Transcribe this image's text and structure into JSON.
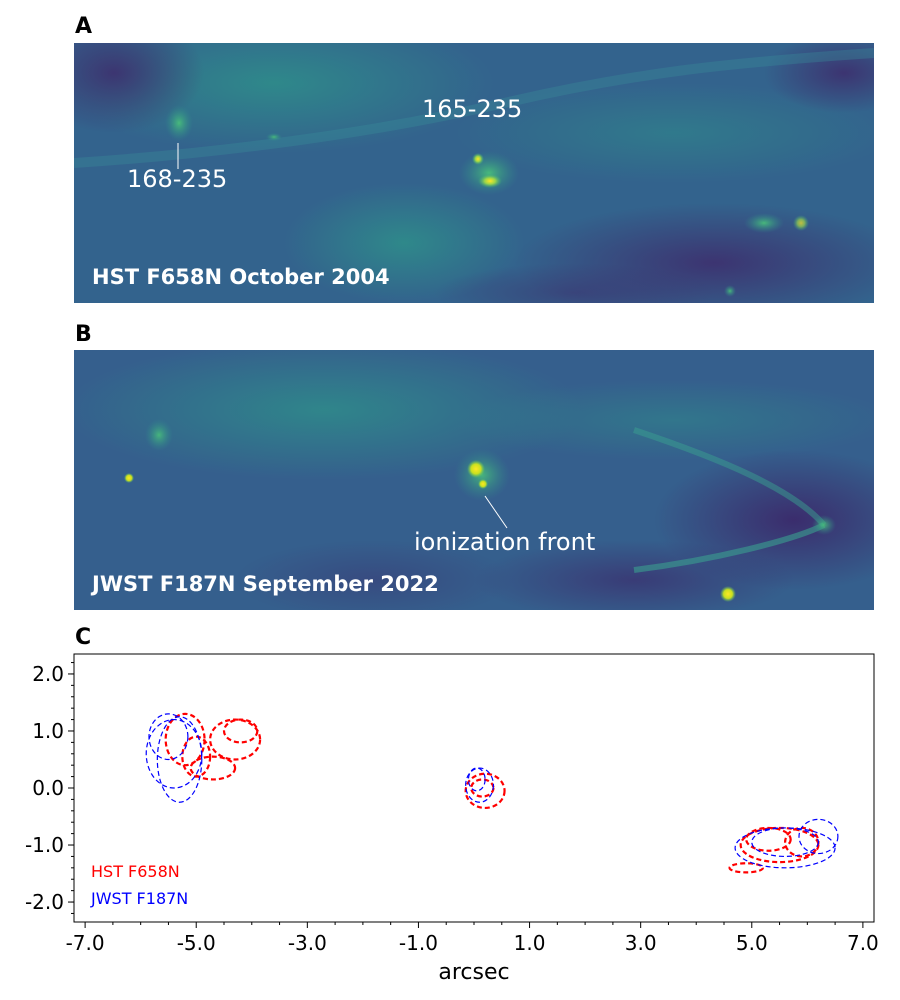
{
  "panels": {
    "a": {
      "letter": "A",
      "caption": "HST F658N October 2004",
      "labels": [
        "168-235",
        "165-235"
      ]
    },
    "b": {
      "letter": "B",
      "caption": "JWST F187N September 2022",
      "labels": [
        "ionization front"
      ]
    },
    "c": {
      "letter": "C"
    }
  },
  "colors": {
    "bg_dark": "#3b4f8c",
    "bg_teal": "#2c8c8a",
    "bright": "#fde725",
    "hst": "#ff0000",
    "jwst": "#0000ff"
  },
  "chart_data": {
    "type": "scatter",
    "xlabel": "arcsec",
    "ylabel": "",
    "xlim": [
      -7.2,
      7.2
    ],
    "ylim": [
      -2.35,
      2.35
    ],
    "xticks": [
      "-7.0",
      "-5.0",
      "-3.0",
      "-1.0",
      "1.0",
      "3.0",
      "5.0",
      "7.0"
    ],
    "xtick_values": [
      -7,
      -5,
      -3,
      -1,
      1,
      3,
      5,
      7
    ],
    "yticks": [
      "2.0",
      "1.0",
      "0.0",
      "-1.0",
      "-2.0"
    ],
    "ytick_values": [
      2,
      1,
      0,
      -1,
      -2
    ],
    "legend": [
      "HST F658N",
      "JWST F187N"
    ],
    "legend_placement": "bottom-left",
    "series": [
      {
        "name": "HST F658N",
        "contours": [
          {
            "cx": -5.2,
            "cy": 0.85,
            "rx": 0.35,
            "ry": 0.45
          },
          {
            "cx": -5.0,
            "cy": 0.55,
            "rx": 0.25,
            "ry": 0.35
          },
          {
            "cx": -4.3,
            "cy": 0.85,
            "rx": 0.45,
            "ry": 0.35
          },
          {
            "cx": -4.2,
            "cy": 1.0,
            "rx": 0.3,
            "ry": 0.2
          },
          {
            "cx": -4.7,
            "cy": 0.35,
            "rx": 0.4,
            "ry": 0.2
          },
          {
            "cx": 0.2,
            "cy": -0.05,
            "rx": 0.35,
            "ry": 0.3
          },
          {
            "cx": 0.15,
            "cy": 0.0,
            "rx": 0.2,
            "ry": 0.15
          },
          {
            "cx": 5.3,
            "cy": -0.9,
            "rx": 0.4,
            "ry": 0.2
          },
          {
            "cx": 5.9,
            "cy": -0.95,
            "rx": 0.3,
            "ry": 0.25
          },
          {
            "cx": 5.5,
            "cy": -1.0,
            "rx": 0.7,
            "ry": 0.3
          },
          {
            "cx": 4.9,
            "cy": -1.4,
            "rx": 0.3,
            "ry": 0.08
          }
        ]
      },
      {
        "name": "JWST F187N",
        "contours": [
          {
            "cx": -5.5,
            "cy": 0.9,
            "rx": 0.35,
            "ry": 0.4
          },
          {
            "cx": -5.4,
            "cy": 0.6,
            "rx": 0.5,
            "ry": 0.6
          },
          {
            "cx": -5.3,
            "cy": 0.5,
            "rx": 0.4,
            "ry": 0.75
          },
          {
            "cx": 0.05,
            "cy": 0.15,
            "rx": 0.15,
            "ry": 0.2
          },
          {
            "cx": 0.1,
            "cy": 0.05,
            "rx": 0.25,
            "ry": 0.3
          },
          {
            "cx": 5.6,
            "cy": -0.95,
            "rx": 0.6,
            "ry": 0.25
          },
          {
            "cx": 6.2,
            "cy": -0.85,
            "rx": 0.35,
            "ry": 0.3
          },
          {
            "cx": 5.6,
            "cy": -1.05,
            "rx": 0.9,
            "ry": 0.35
          }
        ]
      }
    ]
  }
}
